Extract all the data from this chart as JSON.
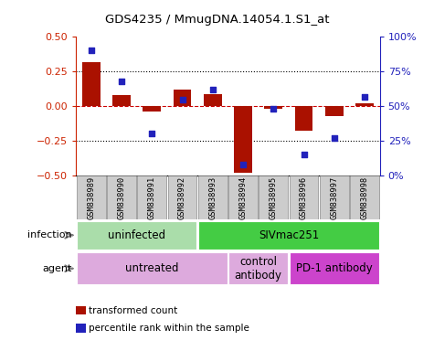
{
  "title": "GDS4235 / MmugDNA.14054.1.S1_at",
  "samples": [
    "GSM838989",
    "GSM838990",
    "GSM838991",
    "GSM838992",
    "GSM838993",
    "GSM838994",
    "GSM838995",
    "GSM838996",
    "GSM838997",
    "GSM838998"
  ],
  "transformed_count": [
    0.32,
    0.08,
    -0.04,
    0.12,
    0.09,
    -0.48,
    -0.02,
    -0.18,
    -0.07,
    0.02
  ],
  "percentile_rank": [
    90,
    68,
    30,
    55,
    62,
    8,
    48,
    15,
    27,
    57
  ],
  "ylim_left": [
    -0.5,
    0.5
  ],
  "ylim_right": [
    0,
    100
  ],
  "yticks_left": [
    -0.5,
    -0.25,
    0,
    0.25,
    0.5
  ],
  "yticks_right": [
    0,
    25,
    50,
    75,
    100
  ],
  "ytick_labels_right": [
    "0%",
    "25%",
    "50%",
    "75%",
    "100%"
  ],
  "hlines_dotted": [
    0.25,
    -0.25
  ],
  "hline_zero": 0.0,
  "bar_color": "#aa1100",
  "dot_color": "#2222bb",
  "infection_labels": [
    {
      "text": "uninfected",
      "start": 0,
      "end": 3,
      "color": "#aaddaa"
    },
    {
      "text": "SIVmac251",
      "start": 4,
      "end": 9,
      "color": "#44cc44"
    }
  ],
  "agent_labels": [
    {
      "text": "untreated",
      "start": 0,
      "end": 4,
      "color": "#ddaadd"
    },
    {
      "text": "control\nantibody",
      "start": 5,
      "end": 6,
      "color": "#ddaadd"
    },
    {
      "text": "PD-1 antibody",
      "start": 7,
      "end": 9,
      "color": "#cc44cc"
    }
  ],
  "legend_items": [
    {
      "label": "transformed count",
      "color": "#aa1100"
    },
    {
      "label": "percentile rank within the sample",
      "color": "#2222bb"
    }
  ],
  "left_axis_color": "#cc2200",
  "right_axis_color": "#2222bb",
  "infection_row_label": "infection",
  "agent_row_label": "agent",
  "sample_box_color": "#cccccc",
  "sample_box_edge": "#888888",
  "zero_line_color": "#cc0000"
}
